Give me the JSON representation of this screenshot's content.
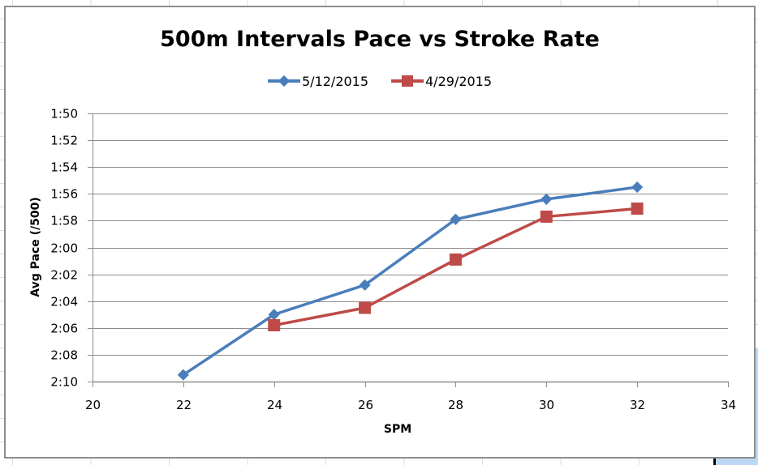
{
  "chart_data": {
    "type": "line",
    "title": "500m Intervals Pace vs Stroke Rate",
    "xlabel": "SPM",
    "ylabel": "Avg Pace (/500)",
    "xlim": [
      20,
      34
    ],
    "x_ticks": [
      20,
      22,
      24,
      26,
      28,
      30,
      32,
      34
    ],
    "ylim_seconds": [
      110,
      130
    ],
    "y_reversed": true,
    "y_ticks": [
      "1:50",
      "1:52",
      "1:54",
      "1:56",
      "1:58",
      "2:00",
      "2:02",
      "2:04",
      "2:06",
      "2:08",
      "2:10"
    ],
    "y_tick_seconds": [
      110,
      112,
      114,
      116,
      118,
      120,
      122,
      124,
      126,
      128,
      130
    ],
    "grid": "horizontal",
    "legend_position": "top-center",
    "series": [
      {
        "name": "5/12/2015",
        "color": "#4a7ebb",
        "marker": "diamond",
        "x": [
          22,
          24,
          26,
          28,
          30,
          32
        ],
        "y_seconds": [
          129.5,
          125.0,
          122.8,
          117.9,
          116.4,
          115.5
        ],
        "y_labels": [
          "2:09.5",
          "2:05.0",
          "2:02.8",
          "1:57.9",
          "1:56.4",
          "1:55.5"
        ]
      },
      {
        "name": "4/29/2015",
        "color": "#be4b48",
        "marker": "square",
        "x": [
          24,
          26,
          28,
          30,
          32
        ],
        "y_seconds": [
          125.8,
          124.5,
          120.9,
          117.7,
          117.1
        ],
        "y_labels": [
          "2:05.8",
          "2:04.5",
          "2:00.9",
          "1:57.7",
          "1:57.1"
        ]
      }
    ]
  }
}
